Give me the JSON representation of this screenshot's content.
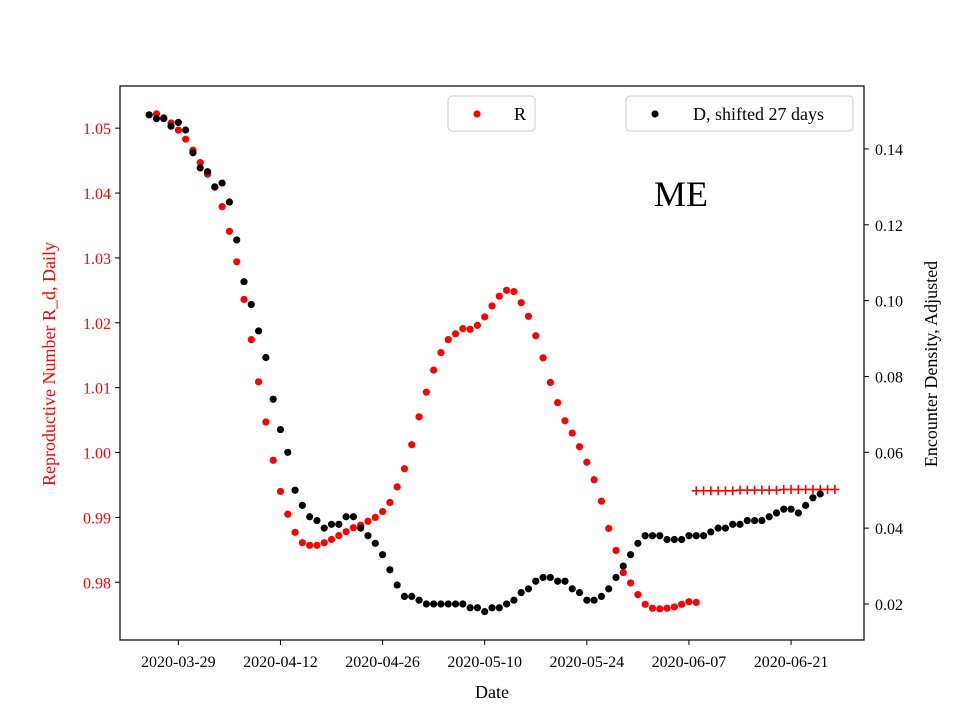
{
  "chart_data": {
    "type": "scatter",
    "annotation": "ME",
    "xlabel": "Date",
    "y_left_label": "Reproductive Number R_d, Daily",
    "y_right_label": "Encounter Density, Adjusted",
    "x_ticks": [
      "2020-03-29",
      "2020-04-12",
      "2020-04-26",
      "2020-05-10",
      "2020-05-24",
      "2020-06-07",
      "2020-06-21"
    ],
    "x_range": [
      "2020-03-21",
      "2020-07-01"
    ],
    "y_left_ticks": [
      "0.98",
      "0.99",
      "1.00",
      "1.01",
      "1.02",
      "1.03",
      "1.04",
      "1.05"
    ],
    "y_left_range": [
      0.9711,
      1.0565
    ],
    "y_right_ticks": [
      "0.02",
      "0.04",
      "0.06",
      "0.08",
      "0.10",
      "0.12",
      "0.14"
    ],
    "y_right_range": [
      0.0105,
      0.1566
    ],
    "colors": {
      "R": "#ff0000",
      "D": "#000000",
      "left_axis": "#ff0000"
    },
    "legend_R": {
      "label": "R",
      "placement": "top-center"
    },
    "legend_D": {
      "label": "D, shifted 27 days",
      "placement": "top-right"
    },
    "series": [
      {
        "name": "R",
        "axis": "left",
        "marker": "dot",
        "start_date": "2020-03-26",
        "values": [
          1.0522,
          1.0516,
          1.0508,
          1.0497,
          1.0483,
          1.0466,
          1.0447,
          1.0429,
          1.0409,
          1.0379,
          1.0341,
          1.0294,
          1.0236,
          1.0174,
          1.0109,
          1.0047,
          0.9988,
          0.994,
          0.9905,
          0.9877,
          0.9861,
          0.9857,
          0.9857,
          0.9861,
          0.9866,
          0.9872,
          0.9878,
          0.9884,
          0.9888,
          0.9894,
          0.99,
          0.9909,
          0.9923,
          0.9947,
          0.9975,
          1.0012,
          1.0055,
          1.0093,
          1.0127,
          1.0154,
          1.0174,
          1.0183,
          1.0191,
          1.019,
          1.0196,
          1.0209,
          1.0226,
          1.0241,
          1.025,
          1.0248,
          1.0231,
          1.021,
          1.018,
          1.0146,
          1.0108,
          1.0077,
          1.0049,
          1.003,
          1.0009,
          0.9985,
          0.9958,
          0.9925,
          0.9883,
          0.9849,
          0.9815,
          0.9799,
          0.9781,
          0.9766,
          0.976,
          0.9759,
          0.976,
          0.9762,
          0.9766,
          0.977,
          0.9769
        ]
      },
      {
        "name": "R",
        "axis": "left",
        "marker": "plus",
        "start_date": "2020-06-08",
        "values": [
          0.9941,
          0.9941,
          0.9941,
          0.9941,
          0.9941,
          0.9941,
          0.9942,
          0.9942,
          0.9942,
          0.9942,
          0.9942,
          0.9942,
          0.9943,
          0.9943,
          0.9943,
          0.9943,
          0.9943,
          0.9943,
          0.9943,
          0.9943
        ]
      },
      {
        "name": "D, shifted 27 days",
        "axis": "right",
        "marker": "dot",
        "start_date": "2020-03-25",
        "values": [
          0.149,
          0.148,
          0.148,
          0.146,
          0.147,
          0.145,
          0.139,
          0.135,
          0.134,
          0.13,
          0.131,
          0.126,
          0.116,
          0.105,
          0.099,
          0.092,
          0.085,
          0.074,
          0.066,
          0.06,
          0.05,
          0.046,
          0.043,
          0.042,
          0.04,
          0.041,
          0.041,
          0.043,
          0.043,
          0.04,
          0.038,
          0.036,
          0.033,
          0.029,
          0.025,
          0.022,
          0.022,
          0.021,
          0.02,
          0.02,
          0.02,
          0.02,
          0.02,
          0.02,
          0.019,
          0.019,
          0.018,
          0.019,
          0.019,
          0.02,
          0.021,
          0.023,
          0.024,
          0.026,
          0.027,
          0.027,
          0.026,
          0.026,
          0.024,
          0.023,
          0.021,
          0.021,
          0.022,
          0.024,
          0.027,
          0.03,
          0.033,
          0.036,
          0.038,
          0.038,
          0.038,
          0.037,
          0.037,
          0.037,
          0.038,
          0.038,
          0.038,
          0.039,
          0.04,
          0.04,
          0.041,
          0.041,
          0.042,
          0.042,
          0.042,
          0.043,
          0.044,
          0.045,
          0.045,
          0.044,
          0.046,
          0.048,
          0.049
        ]
      }
    ]
  }
}
